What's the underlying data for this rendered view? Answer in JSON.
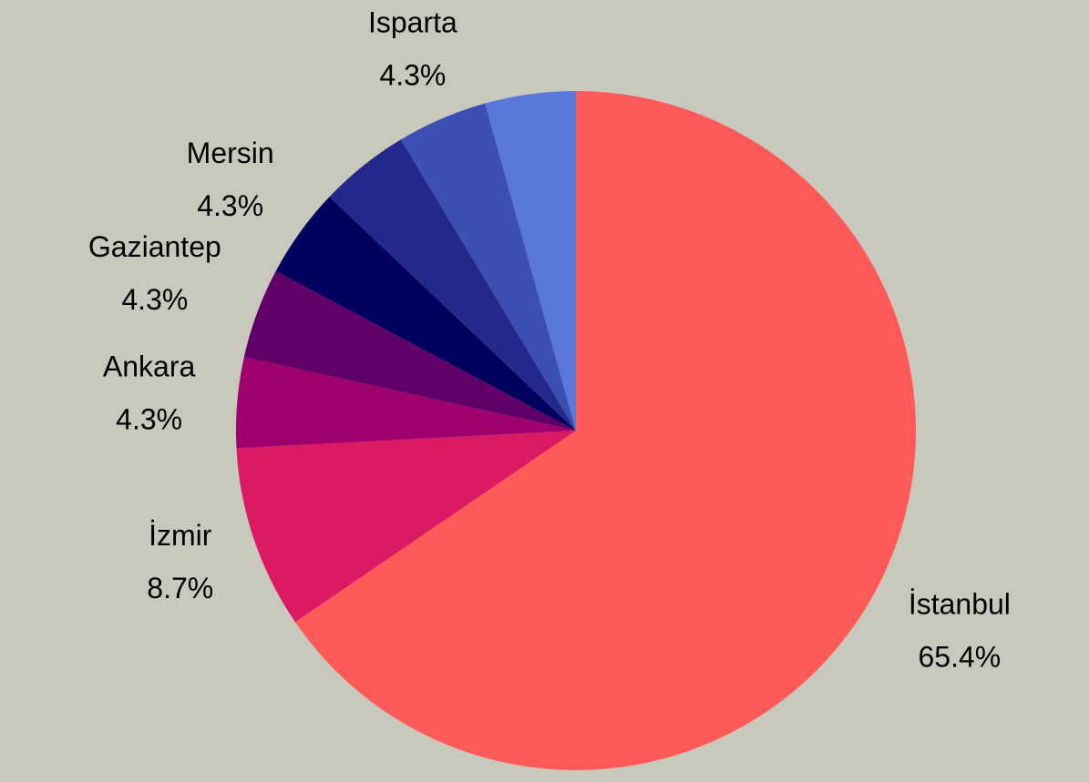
{
  "chart_data": {
    "type": "pie",
    "categories": [
      "İstanbul",
      "İzmir",
      "Ankara",
      "Gaziantep",
      "Mersin",
      null,
      "Isparta",
      null
    ],
    "values": [
      65.4,
      8.7,
      4.3,
      4.3,
      4.3,
      4.3,
      4.3,
      4.3
    ],
    "value_labels": [
      "65.4%",
      "8.7%",
      "4.3%",
      "4.3%",
      "4.3%",
      null,
      "4.3%",
      null
    ],
    "colors": [
      "#ff5a5a",
      "#dc1a64",
      "#a0006e",
      "#600068",
      "#00005f",
      "#23288a",
      "#3c50b4",
      "#5a78d8"
    ]
  }
}
